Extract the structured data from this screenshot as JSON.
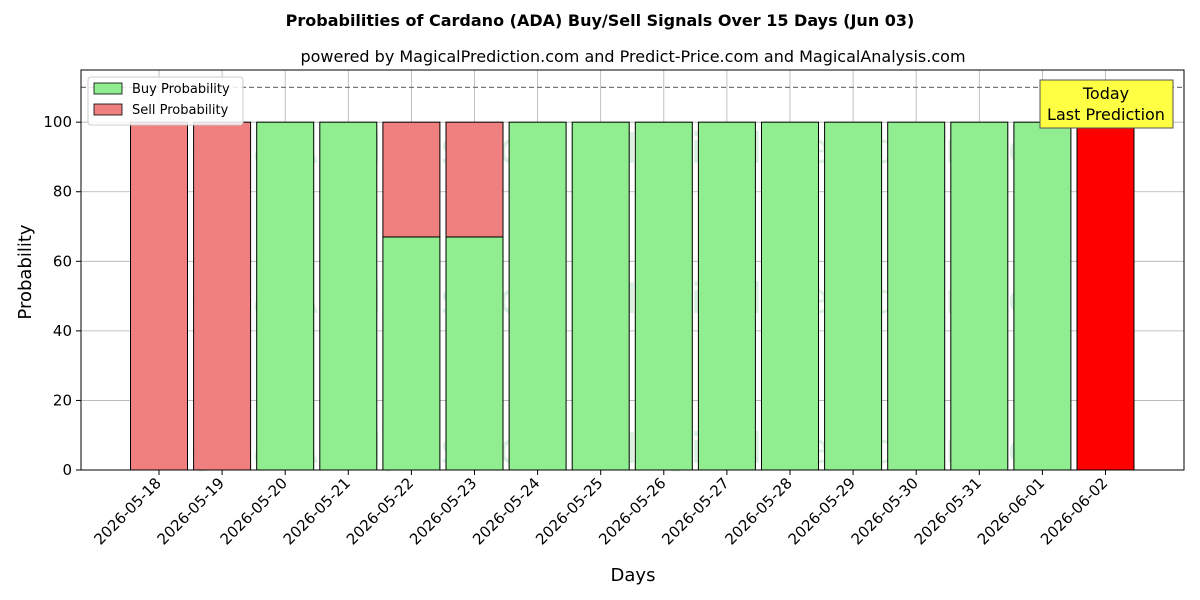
{
  "chart_data": {
    "type": "bar",
    "title": "Probabilities of Cardano (ADA) Buy/Sell Signals Over 15 Days (Jun 03)",
    "subtitle": "powered by MagicalPrediction.com and Predict-Price.com and MagicalAnalysis.com",
    "xlabel": "Days",
    "ylabel": "Probability",
    "ylim": [
      0,
      115
    ],
    "yticks": [
      0,
      20,
      40,
      60,
      80,
      100
    ],
    "reference_line": 110,
    "grid": true,
    "legend_position": "top-left",
    "categories": [
      "2026-05-18",
      "2026-05-19",
      "2026-05-20",
      "2026-05-21",
      "2026-05-22",
      "2026-05-23",
      "2026-05-24",
      "2026-05-25",
      "2026-05-26",
      "2026-05-27",
      "2026-05-28",
      "2026-05-29",
      "2026-05-30",
      "2026-05-31",
      "2026-06-01",
      "2026-06-02"
    ],
    "series": [
      {
        "name": "Buy Probability",
        "color": "#90ee90",
        "values": [
          0,
          0,
          100,
          100,
          67,
          67,
          100,
          100,
          100,
          100,
          100,
          100,
          100,
          100,
          100,
          0
        ]
      },
      {
        "name": "Sell Probability",
        "color": "#f08080",
        "values": [
          100,
          100,
          0,
          0,
          33,
          33,
          0,
          0,
          0,
          0,
          0,
          0,
          0,
          0,
          0,
          100
        ]
      }
    ],
    "highlight": {
      "index": 15,
      "color": "#ff0000"
    },
    "annotation": {
      "line1": "Today",
      "line2": "Last Prediction",
      "background": "#ffff44"
    },
    "watermarks": [
      "MagicalAnalysis.com",
      "MagicalPrediction.com"
    ]
  }
}
